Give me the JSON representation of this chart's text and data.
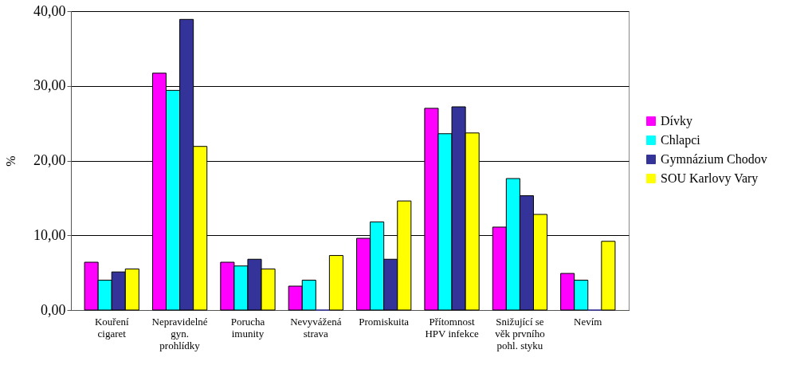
{
  "chart_data": {
    "type": "bar",
    "ylabel": "%",
    "categories": [
      "Kouření cigaret",
      "Nepravidelné gyn. prohlídky",
      "Porucha imunity",
      "Nevyvážená strava",
      "Promiskuita",
      "Přítomnost HPV infekce",
      "Snižující se věk prvního pohl. styku",
      "Nevím"
    ],
    "series": [
      {
        "name": "Dívky",
        "color": "#ff00ff",
        "values": [
          6.4,
          31.7,
          6.4,
          3.2,
          9.6,
          27.0,
          11.1,
          4.9
        ]
      },
      {
        "name": "Chlapci",
        "color": "#00ffff",
        "values": [
          4.0,
          29.4,
          5.9,
          4.0,
          11.8,
          23.6,
          17.6,
          4.0
        ]
      },
      {
        "name": "Gymnázium Chodov",
        "color": "#333399",
        "values": [
          5.1,
          38.9,
          6.8,
          0,
          6.8,
          27.2,
          15.3,
          0
        ]
      },
      {
        "name": "SOU Karlovy Vary",
        "color": "#ffff00",
        "values": [
          5.5,
          21.9,
          5.5,
          7.3,
          14.6,
          23.7,
          12.8,
          9.2
        ]
      }
    ],
    "ylim": [
      0,
      40
    ],
    "yticks": [
      {
        "value": 0,
        "label": "0,00"
      },
      {
        "value": 10,
        "label": "10,00"
      },
      {
        "value": 20,
        "label": "20,00"
      },
      {
        "value": 30,
        "label": "30,00"
      },
      {
        "value": 40,
        "label": "40,00"
      }
    ],
    "grid": "y",
    "legend": "right"
  }
}
